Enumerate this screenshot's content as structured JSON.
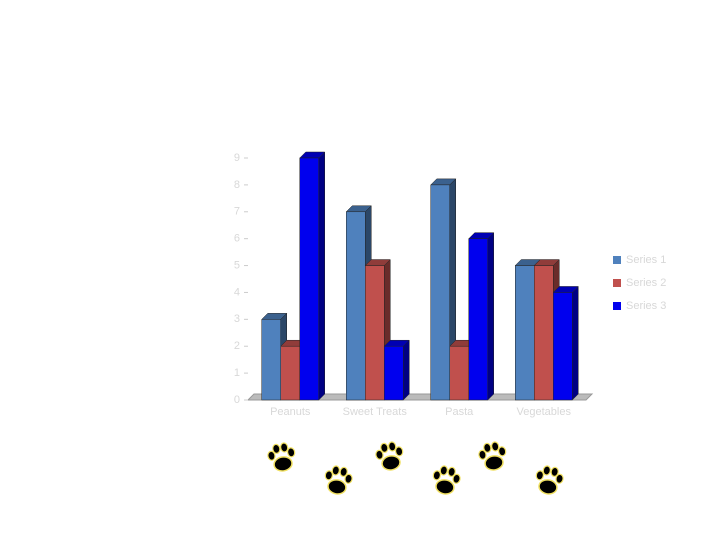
{
  "chart_data": {
    "type": "bar3d",
    "categories": [
      "Peanuts",
      "Sweet Treats",
      "Pasta",
      "Vegetables"
    ],
    "series": [
      {
        "name": "Series 1",
        "color": "#4f81bd",
        "values": [
          3,
          7,
          8,
          5
        ]
      },
      {
        "name": "Series 2",
        "color": "#c0504d",
        "values": [
          2,
          5,
          2,
          5
        ]
      },
      {
        "name": "Series 3",
        "color": "#0000ee",
        "values": [
          9,
          2,
          6,
          4
        ]
      }
    ],
    "ylim": [
      0,
      9
    ],
    "yticks": [
      0,
      1,
      2,
      3,
      4,
      5,
      6,
      7,
      8,
      9
    ],
    "legend": "right"
  }
}
